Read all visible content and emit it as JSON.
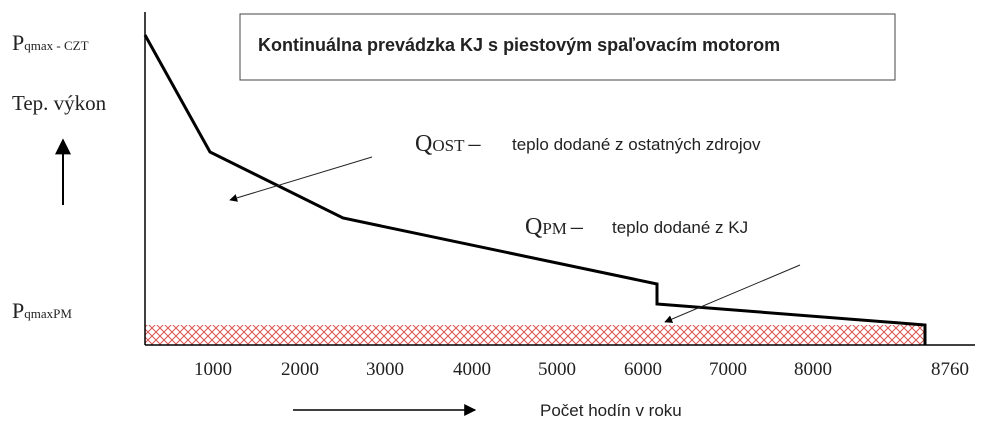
{
  "title": "Kontinuálna prevádzka KJ s piestovým spaľovacím motorom",
  "y_axis": {
    "top_label": {
      "main": "P",
      "sub": "qmax - CZT"
    },
    "label": "Tep. výkon",
    "bottom_label": {
      "main": "P",
      "sub": "qmaxPM"
    }
  },
  "x_axis": {
    "label": "Počet hodín v roku",
    "ticks": [
      "1000",
      "2000",
      "3000",
      "4000",
      "5000",
      "6000",
      "7000",
      "8000",
      "8760"
    ]
  },
  "annotations": [
    {
      "symbol": "Q",
      "sub": "OST",
      "dash": "–",
      "text": "teplo dodané z ostatných zdrojov"
    },
    {
      "symbol": "Q",
      "sub": "PM",
      "dash": "–",
      "text": "teplo dodané z KJ"
    }
  ]
}
